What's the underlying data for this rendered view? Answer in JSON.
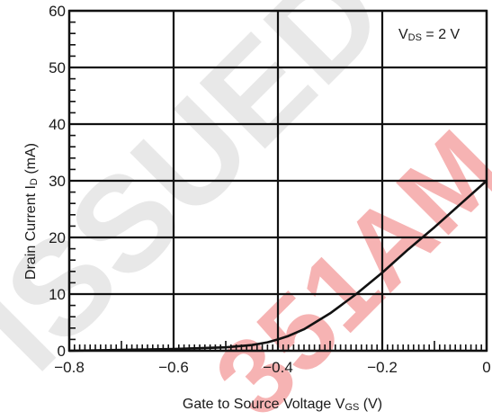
{
  "chart_data": {
    "type": "line",
    "xlabel": {
      "main": "Gate to Source Voltage  V",
      "sub": "GS",
      "unit": " (V)"
    },
    "ylabel": {
      "main": "Drain Current  I",
      "sub": "D",
      "unit": " (mA)"
    },
    "xlim": [
      -0.8,
      0
    ],
    "ylim": [
      0,
      60
    ],
    "x_ticks": [
      -0.8,
      -0.6,
      -0.4,
      -0.2,
      0
    ],
    "x_tick_labels": [
      "−0.8",
      "−0.6",
      "−0.4",
      "−0.2",
      "0"
    ],
    "y_ticks": [
      0,
      10,
      20,
      30,
      40,
      50,
      60
    ],
    "y_tick_labels": [
      "0",
      "10",
      "20",
      "30",
      "40",
      "50",
      "60"
    ],
    "grid": true,
    "annotation": {
      "main": "V",
      "sub": "DS",
      "rest": " = 2 V"
    },
    "series": [
      {
        "x": [
          -0.8,
          -0.6,
          -0.5,
          -0.45,
          -0.42,
          -0.4,
          -0.38,
          -0.35,
          -0.3,
          -0.25,
          -0.2,
          -0.15,
          -0.1,
          -0.05,
          0
        ],
        "y": [
          0,
          0.3,
          0.6,
          1.0,
          1.5,
          2.0,
          2.6,
          3.8,
          6.6,
          10.0,
          13.8,
          17.9,
          21.8,
          25.9,
          30.0
        ]
      }
    ],
    "colors": {
      "line": "#111111",
      "grid": "#111111",
      "watermark": "#e8e8e8",
      "watermark_accent": "#f08080"
    }
  }
}
